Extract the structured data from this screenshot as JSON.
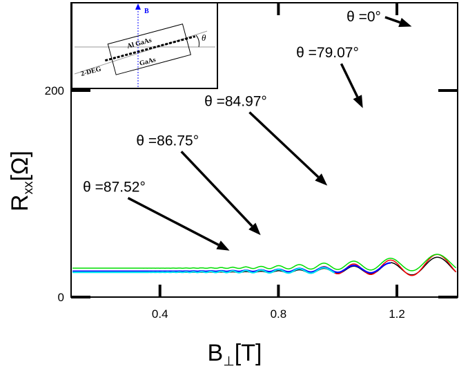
{
  "chart_data": {
    "type": "line",
    "xlabel": {
      "main": "B",
      "sub": "⊥",
      "unit": "[T]"
    },
    "ylabel": {
      "main": "R",
      "sub": "xx",
      "unit": "[Ω]"
    },
    "xlim": [
      0.1,
      1.405
    ],
    "ylim": [
      0,
      285
    ],
    "x_ticks": [
      "0.4",
      "0.8",
      "1.2"
    ],
    "x_tick_values": [
      0.4,
      0.8,
      1.2
    ],
    "y_ticks": [
      "0",
      "200"
    ],
    "y_tick_values": [
      0,
      200
    ],
    "grid": false,
    "series": [
      {
        "name": "θ =0°",
        "color": "#000000",
        "amp0": 235,
        "k": 4.5,
        "base": 24,
        "bmax": 1.4
      },
      {
        "name": "θ =79.07°",
        "color": "#ff0000",
        "amp0": 165,
        "k": 3.8,
        "base": 24,
        "bmax": 1.4
      },
      {
        "name": "θ =84.97°",
        "color": "#00dd00",
        "amp0": 95,
        "k": 3.4,
        "base": 28,
        "bmax": 1.4
      },
      {
        "name": "θ =86.75°",
        "color": "#0000ff",
        "amp0": 95,
        "k": 3.6,
        "base": 25,
        "bmax": 1.18
      },
      {
        "name": "θ =87.52°",
        "color": "#00e5ee",
        "amp0": 34,
        "k": 2.5,
        "base": 24,
        "bmax": 0.99
      }
    ],
    "annotations": [
      {
        "label": "θ =0°",
        "text_x": 1.03,
        "text_y": 267,
        "arrow_x": 1.25,
        "arrow_y": 262
      },
      {
        "label": "θ =79.07°",
        "text_x": 0.86,
        "text_y": 232,
        "arrow_x": 1.085,
        "arrow_y": 183
      },
      {
        "label": "θ =84.97°",
        "text_x": 0.55,
        "text_y": 185,
        "arrow_x": 0.965,
        "arrow_y": 108
      },
      {
        "label": "θ =86.75°",
        "text_x": 0.32,
        "text_y": 147,
        "arrow_x": 0.74,
        "arrow_y": 60
      },
      {
        "label": "θ =87.52°",
        "text_x": 0.14,
        "text_y": 102,
        "arrow_x": 0.635,
        "arrow_y": 45
      }
    ],
    "inset": {
      "field_label": "B",
      "angle_label": "θ",
      "layer_top": "Al GaAs",
      "layer_bottom": "GaAs",
      "gas_label": "2-DEG"
    }
  }
}
